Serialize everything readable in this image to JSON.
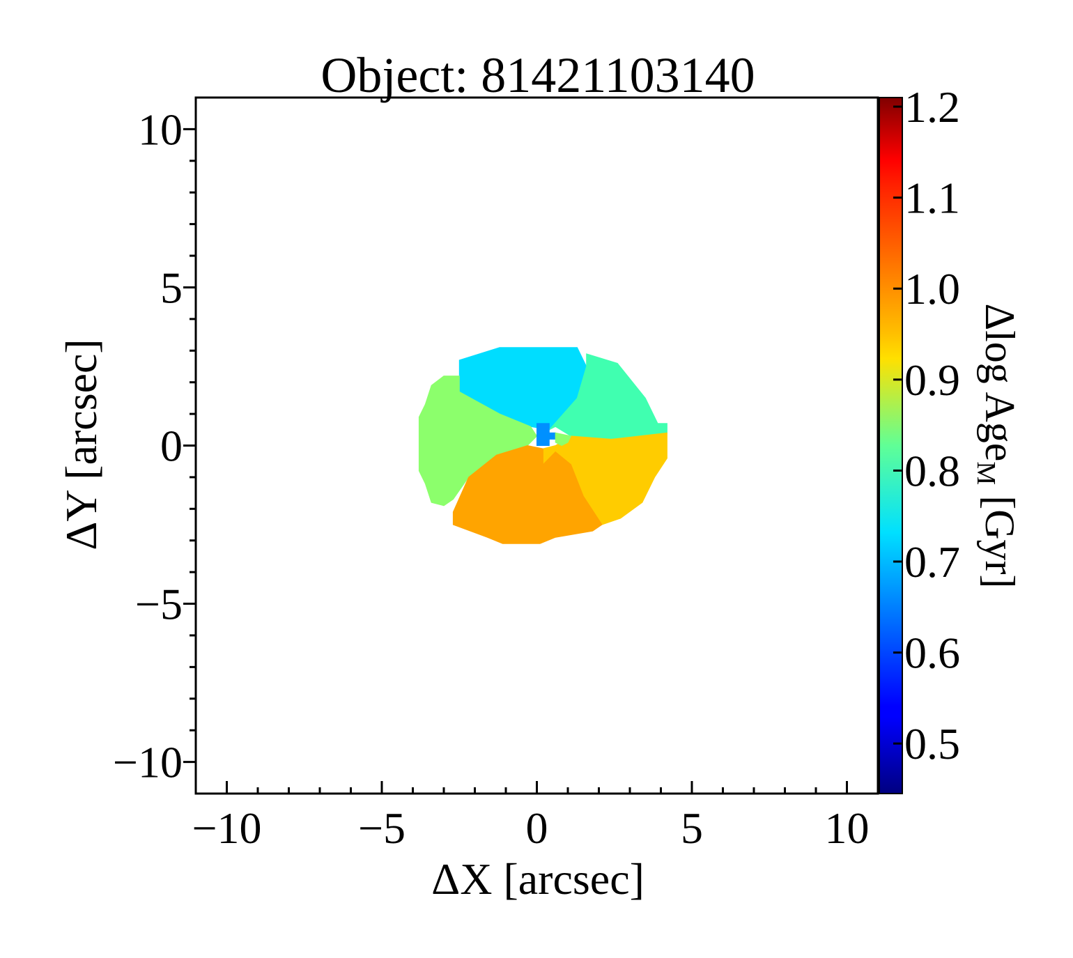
{
  "chart_data": {
    "type": "heatmap",
    "title": "Object: 81421103140",
    "xlabel": "ΔX [arcsec]",
    "ylabel": "ΔY [arcsec]",
    "xlim": [
      -11,
      11
    ],
    "ylim": [
      -11,
      11
    ],
    "x_ticks": [
      -10,
      -5,
      0,
      5,
      10
    ],
    "x_tick_labels": [
      "−10",
      "−5",
      "0",
      "5",
      "10"
    ],
    "y_ticks": [
      10,
      5,
      0,
      -5,
      -10
    ],
    "y_tick_labels": [
      "10",
      "5",
      "0",
      "−5",
      "−10"
    ],
    "colorbar": {
      "label_main": "Δlog Age",
      "label_sub": "M",
      "label_tail": " [Gyr]",
      "range": [
        0.445,
        1.21
      ],
      "ticks": [
        1.2,
        1.1,
        1.0,
        0.9,
        0.8,
        0.7,
        0.6,
        0.5
      ],
      "tick_labels": [
        "1.2",
        "1.1",
        "1.0",
        "0.9",
        "0.8",
        "0.7",
        "0.6",
        "0.5"
      ],
      "colormap": "jet"
    },
    "regions": [
      {
        "name": "north bin",
        "value": 0.7,
        "color": "#00ddff",
        "polygon": [
          [
            -1.2,
            3.1
          ],
          [
            1.3,
            3.1
          ],
          [
            1.6,
            2.5
          ],
          [
            1.3,
            1.5
          ],
          [
            0.4,
            0.5
          ],
          [
            -0.2,
            0.6
          ],
          [
            -1.2,
            1.0
          ],
          [
            -2.5,
            1.7
          ],
          [
            -2.5,
            2.7
          ],
          [
            -1.2,
            3.1
          ]
        ]
      },
      {
        "name": "north-east bin",
        "value": 0.77,
        "color": "#40ffb0",
        "polygon": [
          [
            1.6,
            2.9
          ],
          [
            2.6,
            2.6
          ],
          [
            3.5,
            1.5
          ],
          [
            3.9,
            0.7
          ],
          [
            4.2,
            0.7
          ],
          [
            4.2,
            0.4
          ],
          [
            2.4,
            0.2
          ],
          [
            1.1,
            0.3
          ],
          [
            0.6,
            0.6
          ],
          [
            0.4,
            0.5
          ],
          [
            1.3,
            1.5
          ],
          [
            1.6,
            2.5
          ],
          [
            1.6,
            2.9
          ]
        ]
      },
      {
        "name": "west bin",
        "value": 0.86,
        "color": "#8cff6c",
        "polygon": [
          [
            -3.0,
            2.2
          ],
          [
            -2.5,
            2.2
          ],
          [
            -2.5,
            1.7
          ],
          [
            -1.2,
            1.0
          ],
          [
            -0.2,
            0.6
          ],
          [
            0.0,
            0.3
          ],
          [
            -0.3,
            0.0
          ],
          [
            -1.3,
            -0.3
          ],
          [
            -2.2,
            -1.0
          ],
          [
            -2.7,
            -1.7
          ],
          [
            -3.0,
            -1.9
          ],
          [
            -3.4,
            -1.8
          ],
          [
            -3.6,
            -1.2
          ],
          [
            -3.8,
            -0.8
          ],
          [
            -3.8,
            0.9
          ],
          [
            -3.6,
            1.3
          ],
          [
            -3.4,
            1.9
          ],
          [
            -3.0,
            2.2
          ]
        ]
      },
      {
        "name": "south-east bin",
        "value": 0.97,
        "color": "#ffcc00",
        "polygon": [
          [
            1.1,
            0.3
          ],
          [
            2.4,
            0.2
          ],
          [
            4.2,
            0.4
          ],
          [
            4.2,
            -0.4
          ],
          [
            3.8,
            -1.0
          ],
          [
            3.4,
            -1.8
          ],
          [
            2.7,
            -2.3
          ],
          [
            2.1,
            -2.5
          ],
          [
            1.5,
            -1.6
          ],
          [
            1.1,
            -0.6
          ],
          [
            0.6,
            -0.2
          ],
          [
            0.2,
            -0.6
          ],
          [
            0.2,
            -0.1
          ],
          [
            0.6,
            0.0
          ],
          [
            1.1,
            0.3
          ]
        ]
      },
      {
        "name": "south bin",
        "value": 1.02,
        "color": "#ffa400",
        "polygon": [
          [
            -1.3,
            -0.3
          ],
          [
            -0.3,
            0.0
          ],
          [
            0.2,
            -0.1
          ],
          [
            0.2,
            -0.6
          ],
          [
            0.6,
            -0.2
          ],
          [
            1.1,
            -0.6
          ],
          [
            1.5,
            -1.6
          ],
          [
            2.1,
            -2.5
          ],
          [
            1.8,
            -2.7
          ],
          [
            0.6,
            -2.9
          ],
          [
            0.1,
            -3.1
          ],
          [
            -1.1,
            -3.1
          ],
          [
            -1.6,
            -2.9
          ],
          [
            -2.7,
            -2.5
          ],
          [
            -2.7,
            -2.1
          ],
          [
            -2.2,
            -1.0
          ],
          [
            -1.3,
            -0.3
          ]
        ]
      },
      {
        "name": "centre blue spaxel",
        "value": 0.64,
        "color": "#0090ff",
        "polygon": [
          [
            0.0,
            0.7
          ],
          [
            0.4,
            0.7
          ],
          [
            0.4,
            0.4
          ],
          [
            0.6,
            0.4
          ],
          [
            0.6,
            0.2
          ],
          [
            0.4,
            0.2
          ],
          [
            0.4,
            0.0
          ],
          [
            0.0,
            0.0
          ],
          [
            0.0,
            0.7
          ]
        ]
      },
      {
        "name": "centre green spaxel",
        "value": 0.85,
        "color": "#8cff6c",
        "polygon": [
          [
            0.6,
            0.4
          ],
          [
            1.1,
            0.3
          ],
          [
            1.0,
            0.1
          ],
          [
            0.8,
            0.0
          ],
          [
            0.6,
            0.1
          ],
          [
            0.6,
            0.4
          ]
        ]
      }
    ]
  }
}
